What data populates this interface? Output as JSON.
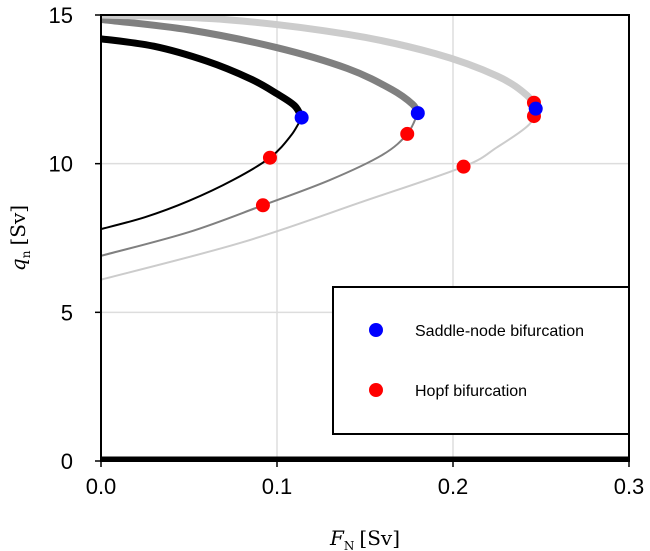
{
  "chart_data": {
    "type": "line",
    "xlabel": "F",
    "xlabel_sub": "N",
    "ylabel": "q",
    "ylabel_sub": "n",
    "unit": "[Sv]",
    "xlim": [
      0.0,
      0.3
    ],
    "ylim": [
      0,
      15
    ],
    "x_ticks": [
      0.0,
      0.1,
      0.2,
      0.3
    ],
    "x_tick_labels": [
      "0.0",
      "0.1",
      "0.2",
      "0.3"
    ],
    "y_ticks": [
      0,
      5,
      10,
      15
    ],
    "y_tick_labels": [
      "0",
      "5",
      "10",
      "15"
    ],
    "grid": true,
    "legend_position": "lower-right",
    "curves": [
      {
        "color": "#000000",
        "stable_branch": [
          [
            0.0,
            14.2
          ],
          [
            0.03,
            13.95
          ],
          [
            0.06,
            13.45
          ],
          [
            0.085,
            12.85
          ],
          [
            0.1,
            12.35
          ],
          [
            0.11,
            11.95
          ],
          [
            0.114,
            11.55
          ]
        ],
        "unstable_branch": [
          [
            0.114,
            11.55
          ],
          [
            0.108,
            10.95
          ],
          [
            0.096,
            10.2
          ],
          [
            0.075,
            9.45
          ],
          [
            0.05,
            8.75
          ],
          [
            0.025,
            8.2
          ],
          [
            0.0,
            7.8
          ]
        ]
      },
      {
        "color": "#808080",
        "stable_branch": [
          [
            0.0,
            14.85
          ],
          [
            0.05,
            14.5
          ],
          [
            0.1,
            13.9
          ],
          [
            0.14,
            13.2
          ],
          [
            0.165,
            12.5
          ],
          [
            0.177,
            12.0
          ],
          [
            0.18,
            11.7
          ]
        ],
        "unstable_branch": [
          [
            0.18,
            11.7
          ],
          [
            0.174,
            11.0
          ],
          [
            0.16,
            10.3
          ],
          [
            0.13,
            9.45
          ],
          [
            0.092,
            8.6
          ],
          [
            0.05,
            7.7
          ],
          [
            0.0,
            6.9
          ]
        ]
      },
      {
        "color": "#cccccc",
        "stable_branch": [
          [
            0.0,
            15.0
          ],
          [
            0.07,
            14.85
          ],
          [
            0.14,
            14.35
          ],
          [
            0.19,
            13.7
          ],
          [
            0.225,
            12.95
          ],
          [
            0.242,
            12.3
          ],
          [
            0.247,
            11.85
          ]
        ],
        "unstable_branch": [
          [
            0.247,
            11.85
          ],
          [
            0.243,
            11.3
          ],
          [
            0.225,
            10.55
          ],
          [
            0.206,
            9.9
          ],
          [
            0.15,
            8.75
          ],
          [
            0.08,
            7.35
          ],
          [
            0.0,
            6.1
          ]
        ]
      }
    ],
    "zero_branch": [
      [
        0.0,
        0.05
      ],
      [
        0.3,
        0.05
      ]
    ],
    "saddle_node_points": [
      [
        0.114,
        11.55
      ],
      [
        0.18,
        11.7
      ],
      [
        0.247,
        11.85
      ]
    ],
    "hopf_points": [
      [
        0.096,
        10.2
      ],
      [
        0.092,
        8.6
      ],
      [
        0.174,
        11.0
      ],
      [
        0.206,
        9.9
      ],
      [
        0.246,
        12.05
      ],
      [
        0.246,
        11.6
      ]
    ],
    "colors": {
      "saddle_node": "#0000ff",
      "hopf": "#ff0000"
    },
    "legend": [
      {
        "label": "Saddle-node bifurcation",
        "color": "#0000ff"
      },
      {
        "label": "Hopf bifurcation",
        "color": "#ff0000"
      }
    ]
  }
}
